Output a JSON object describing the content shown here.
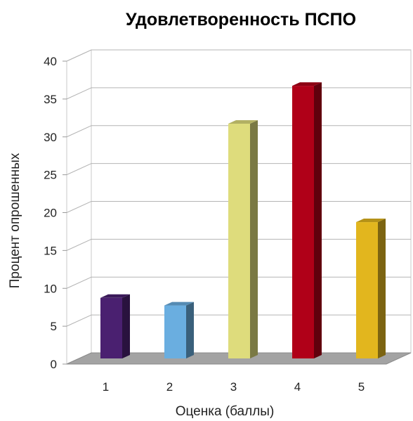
{
  "chart_data": {
    "type": "bar",
    "title": "Удовлетворенность ПСПО",
    "xlabel": "Оценка (баллы)",
    "ylabel": "Процент опрошенных",
    "categories": [
      "1",
      "2",
      "3",
      "4",
      "5"
    ],
    "values": [
      8,
      7,
      31,
      36,
      18
    ],
    "ylim": [
      0,
      40
    ],
    "yticks": [
      "0",
      "5",
      "10",
      "15",
      "20",
      "25",
      "30",
      "35",
      "40"
    ],
    "grid": true,
    "legend": "none",
    "style": "3d-columns",
    "colors": [
      "#4a2070",
      "#6aaee0",
      "#dedc7c",
      "#b00018",
      "#e2b61e"
    ]
  }
}
